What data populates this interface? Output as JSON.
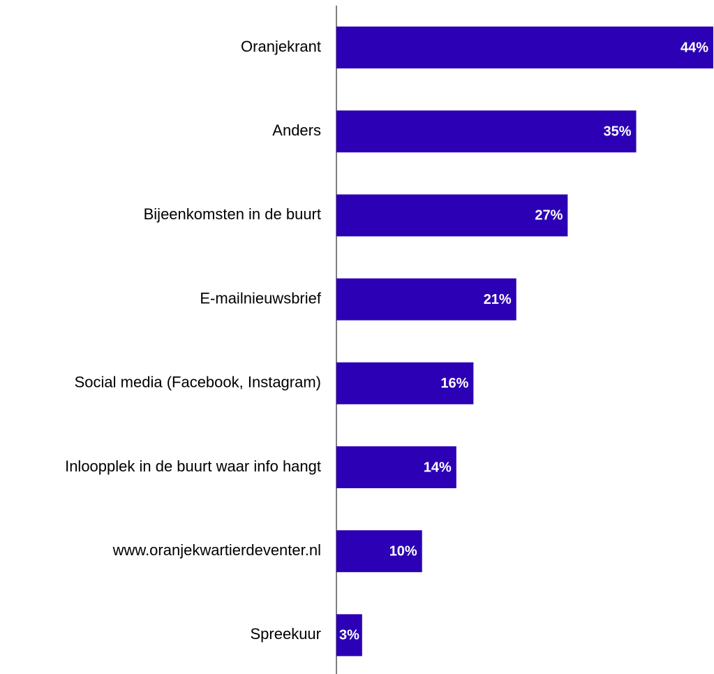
{
  "chart_data": {
    "type": "barh",
    "categories": [
      "Oranjekrant",
      "Anders",
      "Bijeenkomsten in de buurt",
      "E-mailnieuwsbrief",
      "Social media (Facebook, Instagram)",
      "Inloopplek in de buurt waar info hangt",
      "www.oranjekwartierdeventer.nl",
      "Spreekuur"
    ],
    "values": [
      44,
      35,
      27,
      21,
      16,
      14,
      10,
      3
    ],
    "value_labels": [
      "44%",
      "35%",
      "27%",
      "21%",
      "16%",
      "14%",
      "10%",
      "3%"
    ],
    "color": "#2c00b4"
  }
}
